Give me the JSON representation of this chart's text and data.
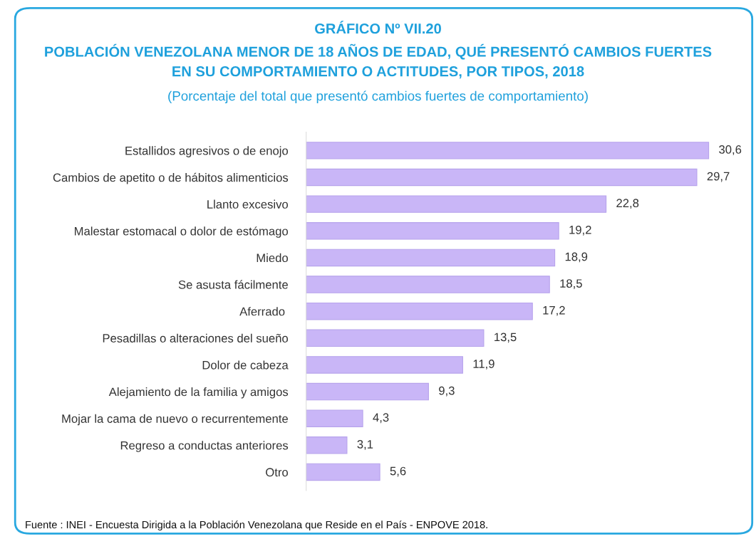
{
  "chart_data": {
    "type": "bar",
    "orientation": "horizontal",
    "title": "GRÁFICO Nº VII.20\nPOBLACIÓN VENEZOLANA MENOR DE 18 AÑOS DE EDAD, QUÉ PRESENTÓ CAMBIOS FUERTES\nEN SU COMPORTAMIENTO O ACTITUDES, POR TIPOS, 2018",
    "subtitle": "(Porcentaje del total que presentó cambios fuertes de comportamiento)",
    "categories": [
      "Estallidos agresivos o de enojo",
      "Cambios de apetito o de hábitos alimenticios",
      "Llanto excesivo",
      "Malestar estomacal o dolor de estómago",
      "Miedo",
      "Se asusta fácilmente",
      "Aferrado ",
      "Pesadillas o alteraciones del sueño",
      "Dolor de cabeza",
      "Alejamiento de la familia y amigos",
      "Mojar la cama de nuevo o recurrentemente",
      "Regreso a conductas anteriores",
      "Otro"
    ],
    "values": [
      30.6,
      29.7,
      22.8,
      19.2,
      18.9,
      18.5,
      17.2,
      13.5,
      11.9,
      9.3,
      4.3,
      3.1,
      5.6
    ],
    "value_labels": [
      "30,6",
      "29,7",
      "22,8",
      "19,2",
      "18,9",
      "18,5",
      "17,2",
      "13,5",
      "11,9",
      "9,3",
      "4,3",
      "3,1",
      "5,6"
    ],
    "color": "#c9b6f7",
    "grid": false,
    "legend": false,
    "tick_labels": "y",
    "annotations": [
      "Fuente : INEI - Encuesta Dirigida a la Población Venezolana que Reside en el País - ENPOVE 2018."
    ]
  }
}
